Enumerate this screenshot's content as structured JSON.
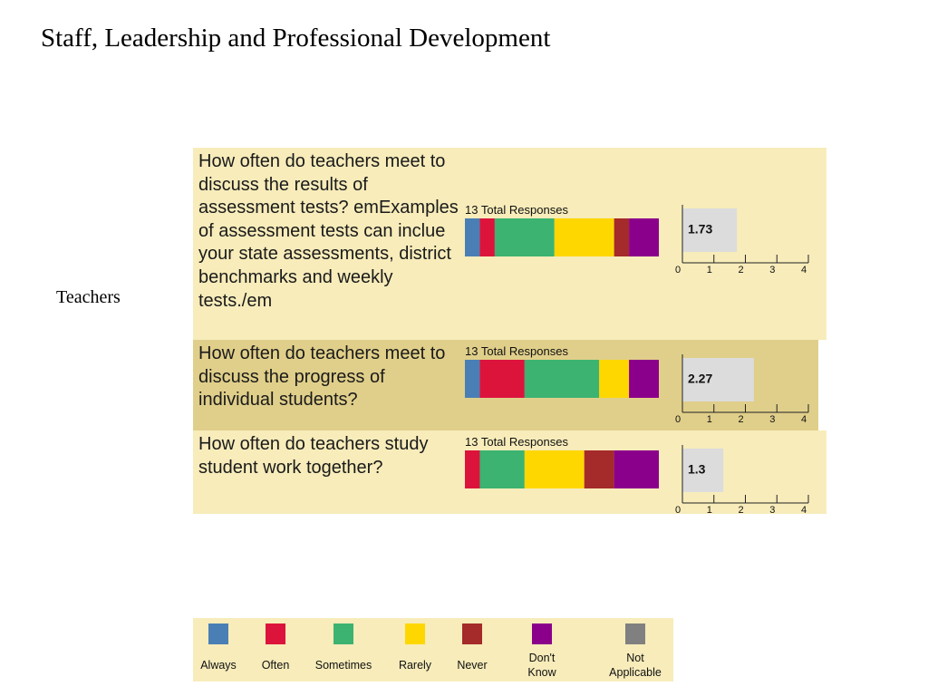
{
  "header": {
    "title": "Staff, Leadership and Professional Development"
  },
  "group_label": "Teachers",
  "chart_data": [
    {
      "type": "stacked_bar",
      "title": "How often do teachers meet to discuss the results of assessment tests? emExamples of assessment tests can inclue your state assessments, district benchmarks and weekly tests./em",
      "subtitle": "13 Total Responses",
      "series": [
        {
          "name": "Always",
          "color": "#4a7fb5",
          "values": [
            1
          ]
        },
        {
          "name": "Often",
          "color": "#dc143c",
          "values": [
            1
          ]
        },
        {
          "name": "Sometimes",
          "color": "#3cb371",
          "values": [
            4
          ]
        },
        {
          "name": "Rarely",
          "color": "#ffd700",
          "values": [
            4
          ]
        },
        {
          "name": "Never",
          "color": "#a52a2a",
          "values": [
            1
          ]
        },
        {
          "name": "Don't Know",
          "color": "#8b008b",
          "values": [
            2
          ]
        },
        {
          "name": "Not Applicable",
          "color": "#808080",
          "values": [
            0
          ]
        }
      ],
      "mean": {
        "value": 1.73,
        "xlim": [
          0,
          4
        ],
        "xticks": [
          0,
          1,
          2,
          3,
          4
        ]
      }
    },
    {
      "type": "stacked_bar",
      "title": "How often do teachers meet to discuss the progress of individual students?",
      "subtitle": "13 Total Responses",
      "series": [
        {
          "name": "Always",
          "color": "#4a7fb5",
          "values": [
            1
          ]
        },
        {
          "name": "Often",
          "color": "#dc143c",
          "values": [
            3
          ]
        },
        {
          "name": "Sometimes",
          "color": "#3cb371",
          "values": [
            5
          ]
        },
        {
          "name": "Rarely",
          "color": "#ffd700",
          "values": [
            2
          ]
        },
        {
          "name": "Never",
          "color": "#a52a2a",
          "values": [
            0
          ]
        },
        {
          "name": "Don't Know",
          "color": "#8b008b",
          "values": [
            2
          ]
        },
        {
          "name": "Not Applicable",
          "color": "#808080",
          "values": [
            0
          ]
        }
      ],
      "mean": {
        "value": 2.27,
        "xlim": [
          0,
          4
        ],
        "xticks": [
          0,
          1,
          2,
          3,
          4
        ]
      }
    },
    {
      "type": "stacked_bar",
      "title": "How often do teachers study student work together?",
      "subtitle": "13 Total Responses",
      "series": [
        {
          "name": "Always",
          "color": "#4a7fb5",
          "values": [
            0
          ]
        },
        {
          "name": "Often",
          "color": "#dc143c",
          "values": [
            1
          ]
        },
        {
          "name": "Sometimes",
          "color": "#3cb371",
          "values": [
            3
          ]
        },
        {
          "name": "Rarely",
          "color": "#ffd700",
          "values": [
            4
          ]
        },
        {
          "name": "Never",
          "color": "#a52a2a",
          "values": [
            2
          ]
        },
        {
          "name": "Don't Know",
          "color": "#8b008b",
          "values": [
            3
          ]
        },
        {
          "name": "Not Applicable",
          "color": "#808080",
          "values": [
            0
          ]
        }
      ],
      "mean": {
        "value": 1.3,
        "xlim": [
          0,
          4
        ],
        "xticks": [
          0,
          1,
          2,
          3,
          4
        ]
      }
    }
  ]
}
